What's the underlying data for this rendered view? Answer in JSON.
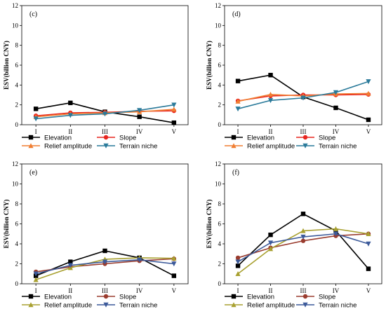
{
  "chart_data": [
    {
      "type": "line",
      "panel_label": "(c)",
      "ylabel": "ESV(billion CNY)",
      "ylim": [
        0,
        12
      ],
      "yticks": [
        "0",
        "2",
        "4",
        "6",
        "8",
        "10",
        "12"
      ],
      "categories": [
        "I",
        "II",
        "III",
        "IV",
        "V"
      ],
      "legend": "bottom",
      "series": [
        {
          "name": "Elevation",
          "color": "#000000",
          "marker": "square",
          "values": [
            1.6,
            2.2,
            1.3,
            0.8,
            0.2
          ]
        },
        {
          "name": "Slope",
          "color": "#e8251f",
          "marker": "circle",
          "values": [
            0.9,
            1.2,
            1.25,
            1.35,
            1.4
          ]
        },
        {
          "name": "Relief amplitude",
          "color": "#f07e32",
          "marker": "triangle-up",
          "values": [
            0.8,
            1.1,
            1.2,
            1.3,
            1.55
          ]
        },
        {
          "name": "Terrain niche",
          "color": "#2a7a9a",
          "marker": "triangle-down",
          "values": [
            0.6,
            0.95,
            1.1,
            1.45,
            2.0
          ]
        }
      ]
    },
    {
      "type": "line",
      "panel_label": "(d)",
      "ylabel": "ESV(billion CNY)",
      "ylim": [
        0,
        12
      ],
      "yticks": [
        "0",
        "2",
        "4",
        "6",
        "8",
        "10",
        "12"
      ],
      "categories": [
        "I",
        "II",
        "III",
        "IV",
        "V"
      ],
      "legend": "bottom",
      "series": [
        {
          "name": "Elevation",
          "color": "#000000",
          "marker": "square",
          "values": [
            4.4,
            5.0,
            2.8,
            1.7,
            0.5
          ]
        },
        {
          "name": "Slope",
          "color": "#e8251f",
          "marker": "circle",
          "values": [
            2.4,
            2.9,
            3.0,
            3.0,
            3.05
          ]
        },
        {
          "name": "Relief amplitude",
          "color": "#f07e32",
          "marker": "triangle-up",
          "values": [
            2.35,
            3.05,
            2.9,
            3.1,
            3.15
          ]
        },
        {
          "name": "Terrain niche",
          "color": "#2a7a9a",
          "marker": "triangle-down",
          "values": [
            1.6,
            2.45,
            2.7,
            3.25,
            4.35
          ]
        }
      ]
    },
    {
      "type": "line",
      "panel_label": "(e)",
      "ylabel": "ESV(billion CNY)",
      "ylim": [
        0,
        12
      ],
      "yticks": [
        "0",
        "2",
        "4",
        "6",
        "8",
        "10",
        "12"
      ],
      "categories": [
        "I",
        "II",
        "III",
        "IV",
        "V"
      ],
      "legend": "bottom",
      "series": [
        {
          "name": "Elevation",
          "color": "#000000",
          "marker": "square",
          "values": [
            0.8,
            2.2,
            3.3,
            2.6,
            0.8
          ]
        },
        {
          "name": "Slope",
          "color": "#9a3c2e",
          "marker": "circle",
          "values": [
            1.2,
            1.7,
            2.0,
            2.3,
            2.5
          ]
        },
        {
          "name": "Relief amplitude",
          "color": "#a8a030",
          "marker": "triangle-up",
          "values": [
            0.4,
            1.6,
            2.45,
            2.6,
            2.55
          ]
        },
        {
          "name": "Terrain niche",
          "color": "#3c5a9a",
          "marker": "triangle-down",
          "values": [
            1.0,
            1.85,
            2.2,
            2.4,
            2.0
          ]
        }
      ]
    },
    {
      "type": "line",
      "panel_label": "(f)",
      "ylabel": "ESV(billion CNY)",
      "ylim": [
        0,
        12
      ],
      "yticks": [
        "0",
        "2",
        "4",
        "6",
        "8",
        "10",
        "12"
      ],
      "categories": [
        "I",
        "II",
        "III",
        "IV",
        "V"
      ],
      "legend": "bottom",
      "series": [
        {
          "name": "Elevation",
          "color": "#000000",
          "marker": "square",
          "values": [
            1.8,
            4.9,
            7.0,
            5.3,
            1.5
          ]
        },
        {
          "name": "Slope",
          "color": "#9a3c2e",
          "marker": "circle",
          "values": [
            2.6,
            3.6,
            4.3,
            4.8,
            5.0
          ]
        },
        {
          "name": "Relief amplitude",
          "color": "#a8a030",
          "marker": "triangle-up",
          "values": [
            1.0,
            3.5,
            5.3,
            5.5,
            5.0
          ]
        },
        {
          "name": "Terrain niche",
          "color": "#3c5a9a",
          "marker": "triangle-down",
          "values": [
            2.2,
            4.1,
            4.7,
            5.0,
            4.0
          ]
        }
      ]
    }
  ]
}
